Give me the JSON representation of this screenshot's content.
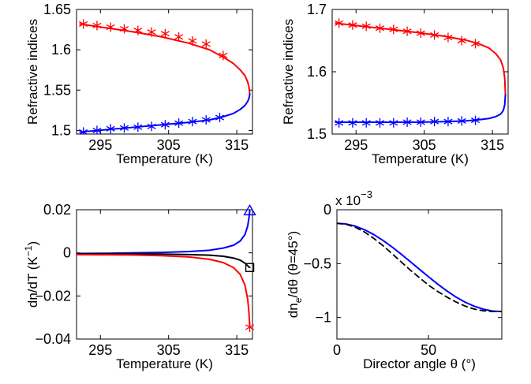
{
  "colors": {
    "red": "#ff0000",
    "blue": "#0000ff",
    "black": "#000000"
  },
  "chart_data": [
    {
      "type": "line",
      "xlabel": "Temperature (K)",
      "ylabel": "Refractive indices",
      "xlim": [
        291.5,
        317.3
      ],
      "ylim": [
        1.4955,
        1.65
      ],
      "xticks": [
        295,
        305,
        315
      ],
      "yticks": [
        1.5,
        1.55,
        1.6,
        1.65
      ],
      "ytick_labels": [
        "1.5",
        "1.55",
        "1.6",
        "1.65"
      ],
      "series": [
        {
          "color": "#ff0000",
          "style": "line",
          "x": [
            292,
            296,
            300,
            304,
            308,
            311,
            313,
            314.5,
            315.5,
            316.2,
            316.6,
            316.8,
            316.9
          ],
          "y": [
            1.632,
            1.627,
            1.622,
            1.616,
            1.608,
            1.6,
            1.591,
            1.583,
            1.575,
            1.568,
            1.56,
            1.553,
            1.545
          ]
        },
        {
          "color": "#ff0000",
          "style": "markers",
          "marker": "asterisk",
          "x": [
            292.5,
            294.5,
            296.5,
            298.5,
            300.5,
            302.5,
            304.5,
            306.5,
            308.5,
            310.5,
            313
          ],
          "y": [
            1.632,
            1.63,
            1.628,
            1.626,
            1.624,
            1.622,
            1.62,
            1.616,
            1.611,
            1.607,
            1.593
          ]
        },
        {
          "color": "#0000ff",
          "style": "line",
          "x": [
            292,
            296,
            300,
            304,
            308,
            311,
            313,
            314.5,
            315.5,
            316.2,
            316.6,
            316.8,
            316.9
          ],
          "y": [
            1.498,
            1.501,
            1.504,
            1.507,
            1.51,
            1.513,
            1.517,
            1.521,
            1.526,
            1.531,
            1.536,
            1.54,
            1.545
          ]
        },
        {
          "color": "#0000ff",
          "style": "markers",
          "marker": "asterisk",
          "x": [
            292.5,
            294.5,
            296.5,
            298.5,
            300.5,
            302.5,
            304.5,
            306.5,
            308.5,
            310.5,
            312.5
          ],
          "y": [
            1.498,
            1.5,
            1.502,
            1.503,
            1.504,
            1.505,
            1.507,
            1.509,
            1.511,
            1.513,
            1.516
          ]
        }
      ]
    },
    {
      "type": "line",
      "xlabel": "Temperature (K)",
      "ylabel": "Refractive indices",
      "xlim": [
        291.5,
        317.3
      ],
      "ylim": [
        1.5,
        1.7
      ],
      "xticks": [
        295,
        305,
        315
      ],
      "yticks": [
        1.5,
        1.6,
        1.7
      ],
      "ytick_labels": [
        "1.5",
        "1.6",
        "1.7"
      ],
      "series": [
        {
          "color": "#ff0000",
          "style": "line",
          "x": [
            292,
            296,
            300,
            304,
            308,
            311,
            313,
            314.5,
            315.5,
            316.2,
            316.6,
            316.8,
            316.9
          ],
          "y": [
            1.678,
            1.673,
            1.668,
            1.663,
            1.657,
            1.651,
            1.645,
            1.638,
            1.629,
            1.619,
            1.606,
            1.59,
            1.563
          ]
        },
        {
          "color": "#ff0000",
          "style": "markers",
          "marker": "asterisk",
          "x": [
            292.5,
            294.5,
            296.5,
            298.5,
            300.5,
            302.5,
            304.5,
            306.5,
            308.5,
            310.5,
            312.5
          ],
          "y": [
            1.678,
            1.675,
            1.673,
            1.67,
            1.668,
            1.665,
            1.662,
            1.659,
            1.655,
            1.65,
            1.645
          ]
        },
        {
          "color": "#0000ff",
          "style": "line",
          "x": [
            292,
            296,
            300,
            304,
            308,
            311,
            313,
            314.5,
            315.5,
            316.2,
            316.6,
            316.8,
            316.9
          ],
          "y": [
            1.519,
            1.519,
            1.519,
            1.519,
            1.52,
            1.521,
            1.523,
            1.525,
            1.528,
            1.532,
            1.538,
            1.547,
            1.563
          ]
        },
        {
          "color": "#0000ff",
          "style": "markers",
          "marker": "asterisk",
          "x": [
            292.5,
            294.5,
            296.5,
            298.5,
            300.5,
            302.5,
            304.5,
            306.5,
            308.5,
            310.5,
            312.5
          ],
          "y": [
            1.518,
            1.518,
            1.518,
            1.518,
            1.518,
            1.519,
            1.519,
            1.52,
            1.52,
            1.521,
            1.522
          ]
        }
      ]
    },
    {
      "type": "line",
      "xlabel": "Temperature (K)",
      "ylabel": "dn/dT (K",
      "ylabel_sup": "−1",
      "ylabel_end": ")",
      "xlim": [
        291.5,
        317.3
      ],
      "ylim": [
        -0.04,
        0.02
      ],
      "xticks": [
        295,
        305,
        315
      ],
      "yticks": [
        -0.04,
        -0.02,
        0,
        0.02
      ],
      "ytick_labels": [
        "−0.04",
        "−0.02",
        "0",
        "0.02"
      ],
      "series": [
        {
          "color": "#0000ff",
          "style": "line",
          "x": [
            291.5,
            296,
            300,
            304,
            308,
            311,
            313,
            314.5,
            315.5,
            316.2,
            316.6,
            316.8,
            316.9
          ],
          "y": [
            -0.0003,
            -0.0002,
            0.0,
            0.0002,
            0.0006,
            0.0012,
            0.0022,
            0.0035,
            0.0055,
            0.0085,
            0.0125,
            0.0165,
            0.0195
          ]
        },
        {
          "color": "#000000",
          "style": "line",
          "x": [
            291.5,
            296,
            300,
            304,
            308,
            311,
            313,
            314.5,
            315.5,
            316.2,
            316.6,
            316.8,
            316.9
          ],
          "y": [
            -0.0005,
            -0.0005,
            -0.0005,
            -0.0006,
            -0.0008,
            -0.0011,
            -0.0016,
            -0.0024,
            -0.0034,
            -0.0048,
            -0.006,
            -0.0066,
            -0.0068
          ]
        },
        {
          "color": "#ff0000",
          "style": "line",
          "x": [
            291.5,
            296,
            300,
            304,
            308,
            311,
            313,
            314.5,
            315.5,
            316.2,
            316.6,
            316.8,
            316.9
          ],
          "y": [
            -0.0008,
            -0.0009,
            -0.001,
            -0.0013,
            -0.0019,
            -0.003,
            -0.0045,
            -0.0068,
            -0.01,
            -0.015,
            -0.0215,
            -0.0285,
            -0.0345
          ]
        }
      ],
      "end_markers": [
        {
          "color": "#0000ff",
          "marker": "triangle",
          "x": 316.9,
          "y": 0.0195
        },
        {
          "color": "#000000",
          "marker": "square",
          "x": 316.9,
          "y": -0.0068
        },
        {
          "color": "#ff0000",
          "marker": "asterisk",
          "x": 316.9,
          "y": -0.0345
        }
      ]
    },
    {
      "type": "line",
      "xlabel": "Director angle θ (°)",
      "ylabel_parts": [
        "dn",
        "e",
        "/dθ (θ=45°)"
      ],
      "scale_label": "x 10",
      "scale_exp": "−3",
      "xlim": [
        0,
        90
      ],
      "ylim": [
        -1.2,
        0
      ],
      "xticks": [
        0,
        50
      ],
      "yticks": [
        -1,
        -0.5,
        0
      ],
      "ytick_labels": [
        "−1",
        "−0.5",
        "0"
      ],
      "series": [
        {
          "color": "#0000ff",
          "style": "line",
          "x": [
            0,
            5,
            10,
            15,
            20,
            25,
            30,
            35,
            40,
            45,
            50,
            55,
            60,
            65,
            70,
            75,
            80,
            85,
            90
          ],
          "y": [
            -0.126,
            -0.132,
            -0.152,
            -0.185,
            -0.229,
            -0.283,
            -0.344,
            -0.411,
            -0.481,
            -0.552,
            -0.622,
            -0.69,
            -0.753,
            -0.81,
            -0.858,
            -0.896,
            -0.923,
            -0.94,
            -0.945
          ]
        },
        {
          "color": "#000000",
          "style": "dashed",
          "x": [
            0,
            5,
            10,
            15,
            20,
            25,
            30,
            35,
            40,
            45,
            50,
            55,
            60,
            65,
            70,
            75,
            80,
            85,
            90
          ],
          "y": [
            -0.126,
            -0.135,
            -0.162,
            -0.206,
            -0.264,
            -0.331,
            -0.406,
            -0.483,
            -0.559,
            -0.63,
            -0.7,
            -0.758,
            -0.81,
            -0.856,
            -0.894,
            -0.922,
            -0.938,
            -0.945,
            -0.945
          ]
        }
      ]
    }
  ]
}
